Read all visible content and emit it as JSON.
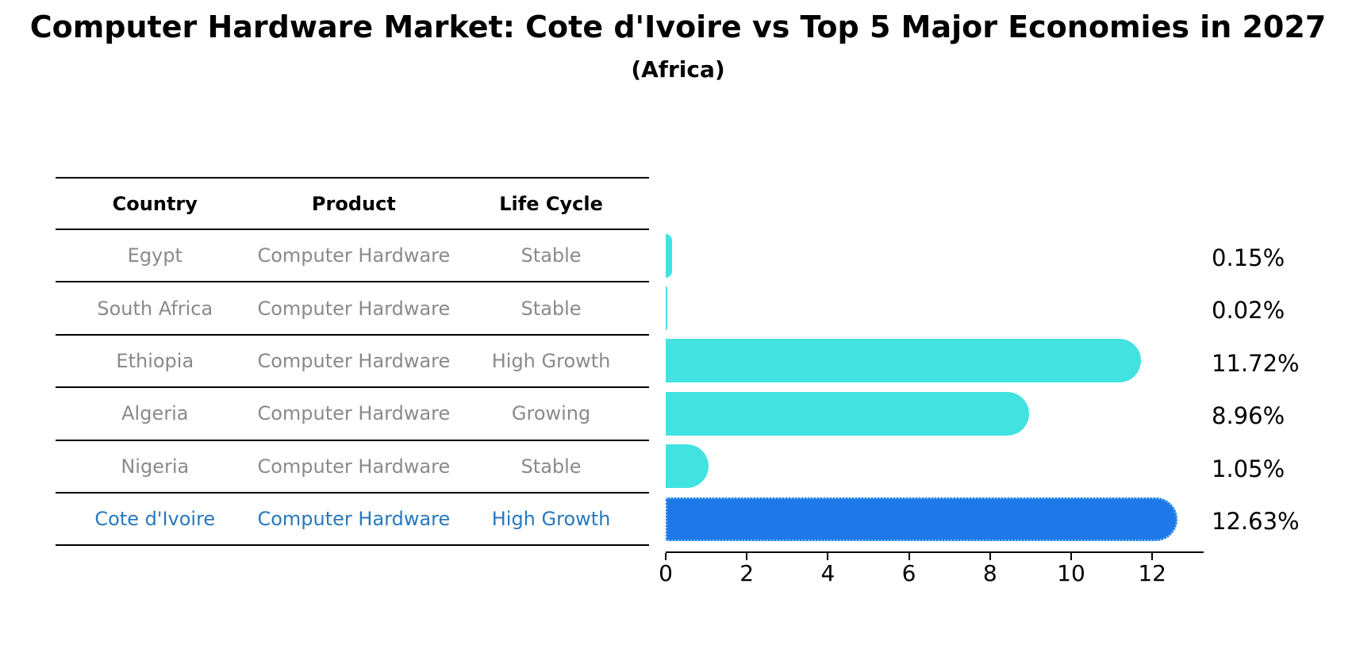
{
  "title": "Computer Hardware Market: Cote d'Ivoire vs Top 5 Major Economies in 2027",
  "subtitle": "(Africa)",
  "table": {
    "headers": [
      "Country",
      "Product",
      "Life Cycle"
    ],
    "rows": [
      {
        "country": "Egypt",
        "product": "Computer Hardware",
        "life_cycle": "Stable",
        "highlight": false
      },
      {
        "country": "South Africa",
        "product": "Computer Hardware",
        "life_cycle": "Stable",
        "highlight": false
      },
      {
        "country": "Ethiopia",
        "product": "Computer Hardware",
        "life_cycle": "High Growth",
        "highlight": false
      },
      {
        "country": "Algeria",
        "product": "Computer Hardware",
        "life_cycle": "Growing",
        "highlight": false
      },
      {
        "country": "Nigeria",
        "product": "Computer Hardware",
        "life_cycle": "Stable",
        "highlight": false
      },
      {
        "country": "Cote d'Ivoire",
        "product": "Computer Hardware",
        "life_cycle": "High Growth",
        "highlight": true
      }
    ]
  },
  "chart_data": {
    "type": "bar",
    "orientation": "horizontal",
    "title": "Computer Hardware Market: Cote d'Ivoire vs Top 5 Major Economies in 2027",
    "subtitle": "(Africa)",
    "categories": [
      "Egypt",
      "South Africa",
      "Ethiopia",
      "Algeria",
      "Nigeria",
      "Cote d'Ivoire"
    ],
    "values": [
      0.15,
      0.02,
      11.72,
      8.96,
      1.05,
      12.63
    ],
    "value_labels": [
      "0.15%",
      "0.02%",
      "11.72%",
      "8.96%",
      "1.05%",
      "12.63%"
    ],
    "x_ticks": [
      0,
      2,
      4,
      6,
      8,
      10,
      12
    ],
    "xlim": [
      0,
      13.27
    ],
    "grid": false,
    "legend": "none",
    "highlight_index": 5
  },
  "colors": {
    "bar": "#42e2e0",
    "highlight_bar": "#1e78e8",
    "highlight_border": "#7cc8f2",
    "row_text": "#8a8a8a",
    "highlight_text": "#2878be",
    "line": "#000000"
  }
}
